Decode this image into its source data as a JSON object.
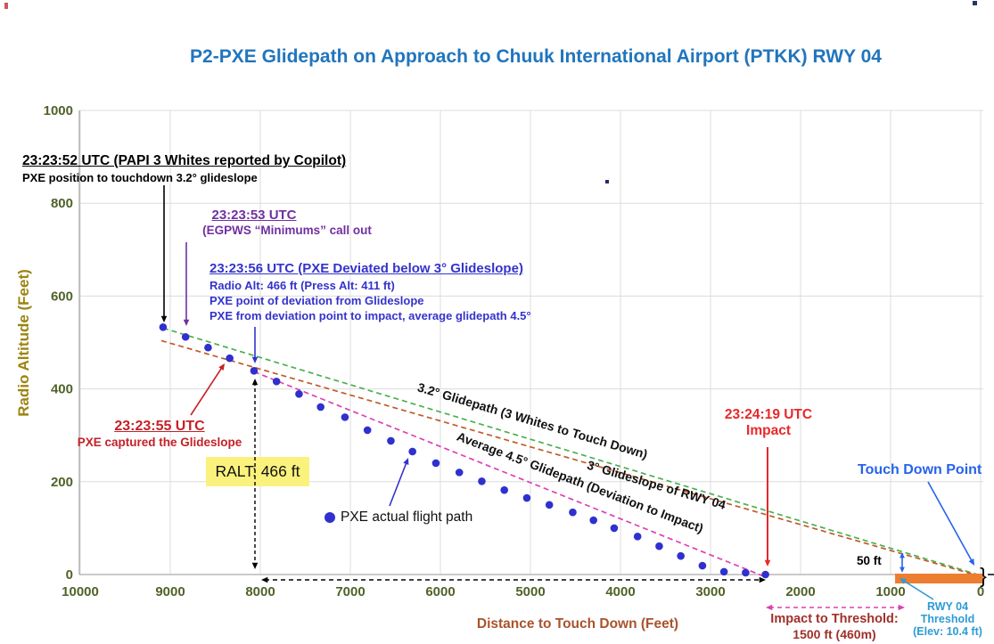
{
  "title": "P2-PXE Glidepath on Approach to Chuuk International Airport (PTKK) RWY 04",
  "colors": {
    "title_blue": "#2175BC",
    "annotation_indigo": "#3333CC",
    "purple": "#7030A0",
    "red_dark": "#C42127",
    "red_bright": "#E8282A",
    "olive_tick": "#4F6228",
    "gold_axis": "#9C8412",
    "brown_axis": "#A9532C",
    "dot_blue": "#3030CF",
    "green_line": "#4CAF50",
    "brown_line": "#BF5B28",
    "magenta_line": "#DD41B3",
    "runway_orange": "#ED7D31",
    "touchdown_blue": "#2563EB",
    "threshold_blue": "#2E9BD6",
    "maroon": "#A0302A",
    "yellow_highlight": "#FBF27D",
    "grid": "#DCDCDC",
    "axis_line": "#ABABAB",
    "ink": "#111111"
  },
  "chart_data": {
    "type": "scatter",
    "title": "P2-PXE Glidepath on Approach to Chuuk International Airport (PTKK) RWY 04",
    "xlabel": "Distance to Touch Down (Feet)",
    "ylabel": "Radio Altitude (Feet)",
    "xlim": [
      10000,
      0
    ],
    "ylim": [
      0,
      1000
    ],
    "x_ticks": [
      10000,
      9000,
      8000,
      7000,
      6000,
      5000,
      4000,
      3000,
      2000,
      1000,
      0
    ],
    "y_ticks": [
      0,
      200,
      400,
      600,
      800,
      1000
    ],
    "grid": true,
    "series": [
      {
        "name": "PXE actual flight path",
        "points": [
          [
            9080,
            533
          ],
          [
            8830,
            512
          ],
          [
            8580,
            489
          ],
          [
            8340,
            466
          ],
          [
            8070,
            439
          ],
          [
            7820,
            416
          ],
          [
            7570,
            389
          ],
          [
            7330,
            361
          ],
          [
            7060,
            339
          ],
          [
            6810,
            311
          ],
          [
            6550,
            288
          ],
          [
            6310,
            265
          ],
          [
            6050,
            240
          ],
          [
            5790,
            220
          ],
          [
            5540,
            201
          ],
          [
            5290,
            182
          ],
          [
            5040,
            165
          ],
          [
            4790,
            150
          ],
          [
            4530,
            134
          ],
          [
            4300,
            117
          ],
          [
            4070,
            100
          ],
          [
            3810,
            82
          ],
          [
            3570,
            61
          ],
          [
            3330,
            40
          ],
          [
            3090,
            19
          ],
          [
            2850,
            6
          ],
          [
            2610,
            4
          ],
          [
            2390,
            0
          ]
        ]
      }
    ],
    "reference_lines": [
      {
        "id": "glidepath-3-2",
        "label": "3.2° Glidepath (3 Whites to Touch Down)",
        "angle_deg": 3.2,
        "color_key": "green_line",
        "from": [
          9080,
          531
        ],
        "to": [
          0,
          -2
        ]
      },
      {
        "id": "glideslope-3",
        "label": "3° Glideslope of RWY 04",
        "angle_deg": 3.0,
        "color_key": "brown_line",
        "from": [
          9100,
          504
        ],
        "to": [
          0,
          -4
        ]
      },
      {
        "id": "avg-glidepath-4-5",
        "label": "Average 4.5° Glidepath (Deviation to Impact)",
        "angle_deg": 4.5,
        "color_key": "magenta_line",
        "from": [
          8070,
          437
        ],
        "to": [
          2380,
          -6
        ]
      }
    ],
    "runway": {
      "from_ft": 950,
      "to_ft": -28,
      "elevation_label": "(Elev: 10.4 ft)"
    }
  },
  "annotations": {
    "ann_2352": {
      "line1": "23:23:52 UTC (PAPI 3 Whites reported by Copilot)",
      "line2": "PXE position to touchdown 3.2° glideslope"
    },
    "ann_2353": {
      "line1": "23:23:53 UTC",
      "line2": "(EGPWS “Minimums” call out"
    },
    "ann_2356": {
      "line1": "23:23:56 UTC (PXE Deviated below 3° Glideslope)",
      "line2": "Radio Alt: 466 ft (Press Alt: 411 ft)",
      "line3": "PXE point of deviation from Glideslope",
      "line4": "PXE from deviation point to impact, average glidepath 4.5°"
    },
    "ann_2355": {
      "line1": "23:23:55 UTC",
      "line2": "PXE captured the Glideslope"
    },
    "ralt": {
      "text": "RALT: 466 ft"
    },
    "legend": {
      "label": "PXE actual flight path"
    },
    "impact": {
      "line1": "23:24:19 UTC",
      "line2": "Impact"
    },
    "touch_down": {
      "label": "Touch Down Point"
    },
    "fifty_ft": {
      "label": "50 ft"
    },
    "rwy_threshold": {
      "line1": "RWY 04",
      "line2": "Threshold",
      "line3": "(Elev: 10.4 ft)"
    },
    "impact_threshold": {
      "line1": "Impact to Threshold:",
      "line2": "1500 ft (460m)"
    },
    "bracket": "}"
  }
}
